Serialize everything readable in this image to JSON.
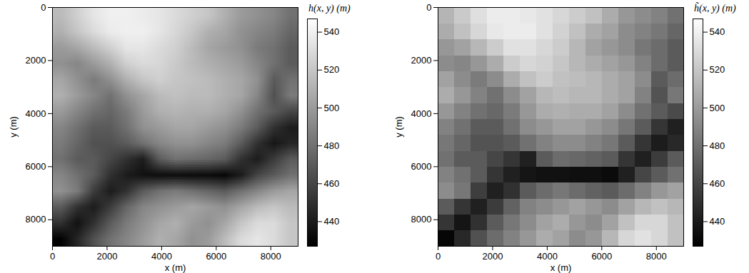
{
  "chart_data": [
    {
      "type": "heatmap",
      "title": "h(x, y) (m)",
      "xlabel": "x (m)",
      "ylabel": "y (m)",
      "xlim": [
        0,
        9000
      ],
      "ylim": [
        0,
        9000
      ],
      "xticks": [
        0,
        2000,
        4000,
        6000,
        8000
      ],
      "yticks": [
        0,
        2000,
        4000,
        6000,
        8000
      ],
      "colorbar_range": [
        427,
        547
      ],
      "colorbar_ticks": [
        440,
        460,
        480,
        500,
        520,
        540
      ],
      "cells": [
        [
          515,
          525,
          535,
          540,
          540,
          538,
          535,
          530,
          525,
          520,
          510,
          500,
          495,
          490,
          480
        ],
        [
          510,
          520,
          530,
          538,
          540,
          540,
          535,
          528,
          520,
          510,
          505,
          495,
          490,
          485,
          475
        ],
        [
          500,
          505,
          515,
          525,
          535,
          535,
          530,
          525,
          515,
          505,
          500,
          495,
          485,
          480,
          470
        ],
        [
          495,
          490,
          500,
          510,
          525,
          530,
          528,
          522,
          515,
          510,
          505,
          500,
          490,
          480,
          470
        ],
        [
          505,
          495,
          485,
          495,
          510,
          520,
          525,
          520,
          518,
          515,
          510,
          505,
          495,
          470,
          480
        ],
        [
          510,
          500,
          490,
          480,
          495,
          505,
          515,
          518,
          515,
          515,
          510,
          505,
          490,
          465,
          485
        ],
        [
          500,
          490,
          480,
          475,
          485,
          500,
          510,
          512,
          510,
          510,
          505,
          495,
          480,
          470,
          460
        ],
        [
          490,
          480,
          470,
          470,
          480,
          495,
          500,
          505,
          505,
          500,
          495,
          485,
          470,
          450,
          440
        ],
        [
          485,
          475,
          465,
          465,
          470,
          480,
          490,
          495,
          495,
          490,
          485,
          470,
          450,
          438,
          445
        ],
        [
          480,
          470,
          470,
          460,
          450,
          440,
          470,
          480,
          478,
          475,
          470,
          450,
          440,
          455,
          470
        ],
        [
          490,
          480,
          470,
          450,
          440,
          435,
          433,
          433,
          432,
          432,
          430,
          440,
          460,
          470,
          480
        ],
        [
          495,
          485,
          455,
          440,
          450,
          470,
          480,
          485,
          480,
          475,
          470,
          480,
          490,
          500,
          505
        ],
        [
          470,
          450,
          440,
          455,
          475,
          490,
          495,
          500,
          505,
          500,
          495,
          505,
          515,
          520,
          515
        ],
        [
          450,
          435,
          450,
          470,
          485,
          495,
          505,
          510,
          500,
          495,
          505,
          520,
          530,
          530,
          520
        ],
        [
          428,
          445,
          465,
          480,
          490,
          500,
          510,
          505,
          495,
          500,
          515,
          530,
          535,
          530,
          520
        ]
      ]
    },
    {
      "type": "heatmap",
      "title": "h̃(x, y) (m)",
      "xlabel": "x (m)",
      "ylabel": "y (m)",
      "xlim": [
        0,
        9000
      ],
      "ylim": [
        0,
        9000
      ],
      "xticks": [
        0,
        2000,
        4000,
        6000,
        8000
      ],
      "yticks": [
        0,
        2000,
        4000,
        6000,
        8000
      ],
      "colorbar_range": [
        427,
        547
      ],
      "colorbar_ticks": [
        440,
        460,
        480,
        500,
        520,
        540
      ],
      "cells": [
        [
          512,
          522,
          532,
          538,
          538,
          536,
          533,
          528,
          523,
          518,
          508,
          498,
          493,
          488,
          480
        ],
        [
          508,
          518,
          528,
          536,
          538,
          538,
          533,
          526,
          518,
          508,
          503,
          493,
          488,
          483,
          475
        ],
        [
          498,
          503,
          513,
          523,
          533,
          533,
          528,
          523,
          513,
          503,
          498,
          493,
          483,
          478,
          470
        ],
        [
          493,
          490,
          498,
          508,
          523,
          528,
          526,
          520,
          513,
          508,
          503,
          498,
          488,
          478,
          470
        ],
        [
          503,
          493,
          485,
          493,
          508,
          518,
          523,
          518,
          516,
          513,
          508,
          503,
          493,
          470,
          478
        ],
        [
          508,
          498,
          488,
          480,
          493,
          503,
          513,
          516,
          513,
          513,
          508,
          503,
          488,
          466,
          483
        ],
        [
          498,
          488,
          480,
          476,
          485,
          498,
          508,
          510,
          508,
          508,
          503,
          493,
          480,
          470,
          462
        ],
        [
          488,
          480,
          470,
          470,
          480,
          493,
          498,
          503,
          503,
          498,
          493,
          483,
          470,
          452,
          442
        ],
        [
          483,
          475,
          466,
          466,
          470,
          480,
          488,
          493,
          493,
          488,
          483,
          470,
          452,
          440,
          446
        ],
        [
          480,
          470,
          470,
          460,
          452,
          442,
          470,
          478,
          476,
          473,
          470,
          452,
          442,
          455,
          470
        ],
        [
          488,
          480,
          470,
          452,
          442,
          437,
          435,
          435,
          434,
          434,
          432,
          442,
          460,
          470,
          480
        ],
        [
          493,
          483,
          456,
          442,
          450,
          470,
          478,
          483,
          478,
          473,
          470,
          478,
          488,
          498,
          503
        ],
        [
          470,
          452,
          442,
          455,
          473,
          488,
          493,
          498,
          503,
          498,
          493,
          503,
          513,
          518,
          513
        ],
        [
          452,
          437,
          450,
          470,
          483,
          493,
          503,
          508,
          498,
          493,
          503,
          518,
          528,
          528,
          518
        ],
        [
          430,
          446,
          465,
          478,
          488,
          498,
          508,
          503,
          493,
          498,
          513,
          528,
          533,
          528,
          518
        ]
      ]
    }
  ]
}
